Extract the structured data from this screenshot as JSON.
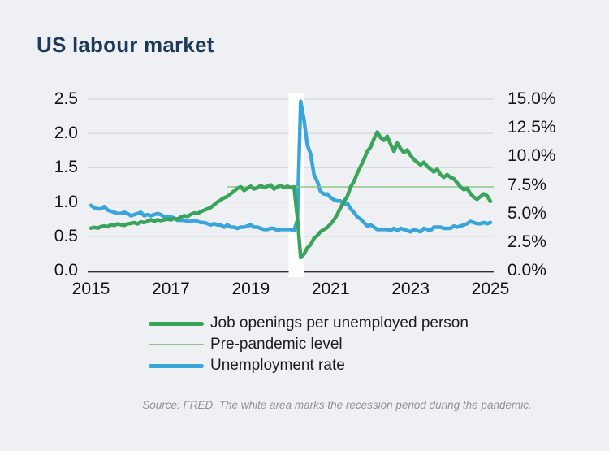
{
  "title": "US labour market",
  "source_note": "Source: FRED. The white area marks the recession period during the pandemic.",
  "legend": [
    {
      "label": "Job openings per unemployed person",
      "swatch": "thick-green"
    },
    {
      "label": "Pre-pandemic level",
      "swatch": "thin-green"
    },
    {
      "label": "Unemployment rate",
      "swatch": "thick-blue"
    }
  ],
  "colors": {
    "background": "#eff0f3",
    "title": "#1d3b59",
    "green_series": "#3aa45a",
    "light_green_line": "#8cc88c",
    "blue_series": "#3aa5da",
    "grid": "#d9dadc",
    "axis": "#303032",
    "recession_band": "#ffffff",
    "tick_text": "#141416",
    "source_text": "#8d939c"
  },
  "chart_data": {
    "type": "line",
    "title": "US labour market",
    "x_start_year": 2015,
    "x_step_months": 1,
    "grid": true,
    "legend_position": "bottom",
    "x_axis": {
      "ticks": [
        {
          "label": "2015",
          "value": 2015
        },
        {
          "label": "2017",
          "value": 2017
        },
        {
          "label": "2019",
          "value": 2019
        },
        {
          "label": "2021",
          "value": 2021
        },
        {
          "label": "2023",
          "value": 2023
        },
        {
          "label": "2025",
          "value": 2025
        }
      ]
    },
    "left_axis": {
      "range": [
        0,
        2.5
      ],
      "grid_values": [
        0.5,
        1.0,
        1.5,
        2.0,
        2.5
      ],
      "ticks": [
        {
          "label": "2.5",
          "value": 2.5
        },
        {
          "label": "2.0",
          "value": 2.0
        },
        {
          "label": "1.5",
          "value": 1.5
        },
        {
          "label": "1.0",
          "value": 1.0
        },
        {
          "label": "0.5",
          "value": 0.5
        },
        {
          "label": "0.0",
          "value": 0.0
        }
      ]
    },
    "right_axis": {
      "range": [
        0,
        15
      ],
      "ticks": [
        {
          "label": "15.0%",
          "value": 15.0
        },
        {
          "label": "12.5%",
          "value": 12.5
        },
        {
          "label": "10.0%",
          "value": 10.0
        },
        {
          "label": "7.5%",
          "value": 7.5
        },
        {
          "label": "5.0%",
          "value": 5.0
        },
        {
          "label": "2.5%",
          "value": 2.5
        },
        {
          "label": "0.0%",
          "value": 0.0
        }
      ]
    },
    "recession_band": {
      "start": 2019.95,
      "end": 2020.33,
      "color": "#ffffff"
    },
    "pre_pandemic_level": {
      "value": 1.22,
      "start": 2018.4,
      "color": "#8cc88c",
      "width": 1.6
    },
    "series": [
      {
        "name": "Unemployment rate",
        "axis": "right",
        "color": "#3aa5da",
        "width": 4.5,
        "values": [
          5.7,
          5.5,
          5.4,
          5.4,
          5.6,
          5.3,
          5.2,
          5.1,
          5.0,
          5.0,
          5.1,
          5.0,
          4.8,
          4.9,
          5.0,
          5.1,
          4.8,
          4.9,
          4.8,
          4.9,
          5.0,
          4.9,
          4.7,
          4.7,
          4.7,
          4.6,
          4.4,
          4.4,
          4.4,
          4.3,
          4.3,
          4.4,
          4.3,
          4.2,
          4.2,
          4.1,
          4.0,
          4.1,
          4.0,
          4.0,
          3.8,
          4.0,
          3.8,
          3.8,
          3.7,
          3.8,
          3.8,
          3.9,
          4.0,
          3.8,
          3.8,
          3.7,
          3.6,
          3.6,
          3.7,
          3.7,
          3.5,
          3.6,
          3.6,
          3.6,
          3.6,
          3.5,
          4.4,
          14.8,
          13.2,
          11.0,
          10.2,
          8.4,
          7.8,
          6.9,
          6.7,
          6.7,
          6.4,
          6.2,
          6.1,
          6.1,
          5.8,
          5.9,
          5.4,
          5.1,
          4.7,
          4.5,
          4.2,
          3.9,
          4.0,
          3.8,
          3.6,
          3.6,
          3.6,
          3.6,
          3.5,
          3.7,
          3.5,
          3.7,
          3.6,
          3.5,
          3.4,
          3.6,
          3.5,
          3.4,
          3.7,
          3.6,
          3.5,
          3.8,
          3.8,
          3.8,
          3.7,
          3.7,
          3.7,
          3.9,
          3.8,
          3.9,
          4.0,
          4.1,
          4.3,
          4.2,
          4.1,
          4.1,
          4.2,
          4.1,
          4.2
        ]
      },
      {
        "name": "Job openings per unemployed person",
        "axis": "left",
        "color": "#3aa45a",
        "width": 4.5,
        "values": [
          0.62,
          0.63,
          0.62,
          0.64,
          0.65,
          0.64,
          0.67,
          0.66,
          0.68,
          0.67,
          0.66,
          0.68,
          0.69,
          0.7,
          0.68,
          0.71,
          0.7,
          0.72,
          0.74,
          0.72,
          0.74,
          0.73,
          0.74,
          0.75,
          0.74,
          0.76,
          0.75,
          0.78,
          0.8,
          0.79,
          0.82,
          0.84,
          0.83,
          0.86,
          0.88,
          0.9,
          0.92,
          0.96,
          1.0,
          1.03,
          1.06,
          1.08,
          1.12,
          1.16,
          1.2,
          1.22,
          1.17,
          1.2,
          1.23,
          1.19,
          1.21,
          1.24,
          1.21,
          1.23,
          1.25,
          1.19,
          1.22,
          1.24,
          1.21,
          1.23,
          1.21,
          1.22,
          0.78,
          0.19,
          0.24,
          0.33,
          0.38,
          0.47,
          0.51,
          0.57,
          0.6,
          0.63,
          0.68,
          0.74,
          0.82,
          0.92,
          1.01,
          1.08,
          1.22,
          1.3,
          1.42,
          1.52,
          1.62,
          1.74,
          1.8,
          1.92,
          2.02,
          1.94,
          1.9,
          1.96,
          1.84,
          1.74,
          1.86,
          1.78,
          1.72,
          1.76,
          1.68,
          1.62,
          1.58,
          1.54,
          1.58,
          1.52,
          1.48,
          1.44,
          1.48,
          1.4,
          1.36,
          1.4,
          1.36,
          1.34,
          1.28,
          1.22,
          1.18,
          1.2,
          1.12,
          1.07,
          1.04,
          1.08,
          1.12,
          1.09,
          1.01
        ]
      }
    ]
  }
}
